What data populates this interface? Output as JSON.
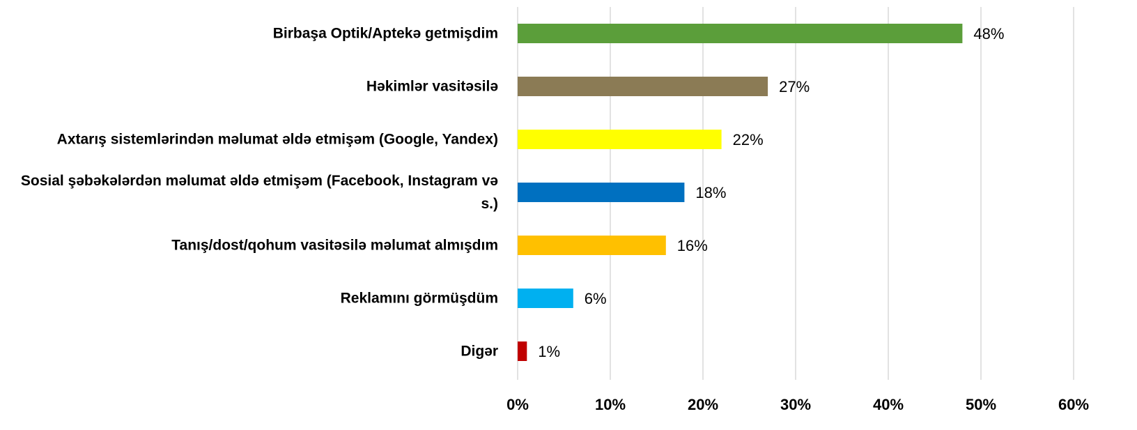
{
  "chart_data": {
    "type": "hbar",
    "categories": [
      "Birbaşa Optik/Aptekə getmişdim",
      "Həkimlər vasitəsilə",
      "Axtarış sistemlərindən məlumat əldə etmişəm (Google, Yandex)",
      "Sosial şəbəkələrdən məlumat əldə etmişəm (Facebook, Instagram və s.)",
      "Tanış/dost/qohum vasitəsilə məlumat almışdım",
      "Reklamını görmüşdüm",
      "Digər"
    ],
    "values": [
      48,
      27,
      22,
      18,
      16,
      6,
      1
    ],
    "value_labels": [
      "48%",
      "27%",
      "22%",
      "18%",
      "16%",
      "6%",
      "1%"
    ],
    "colors": [
      "#5b9e3a",
      "#8b7b55",
      "#ffff00",
      "#0070c0",
      "#ffc000",
      "#00b0f0",
      "#c00000"
    ],
    "xlim": [
      0,
      60
    ],
    "xticks": [
      {
        "value": 0,
        "label": "0%"
      },
      {
        "value": 10,
        "label": "10%"
      },
      {
        "value": 20,
        "label": "20%"
      },
      {
        "value": 30,
        "label": "30%"
      },
      {
        "value": 40,
        "label": "40%"
      },
      {
        "value": 50,
        "label": "50%"
      },
      {
        "value": 60,
        "label": "60%"
      }
    ],
    "grid": true
  }
}
